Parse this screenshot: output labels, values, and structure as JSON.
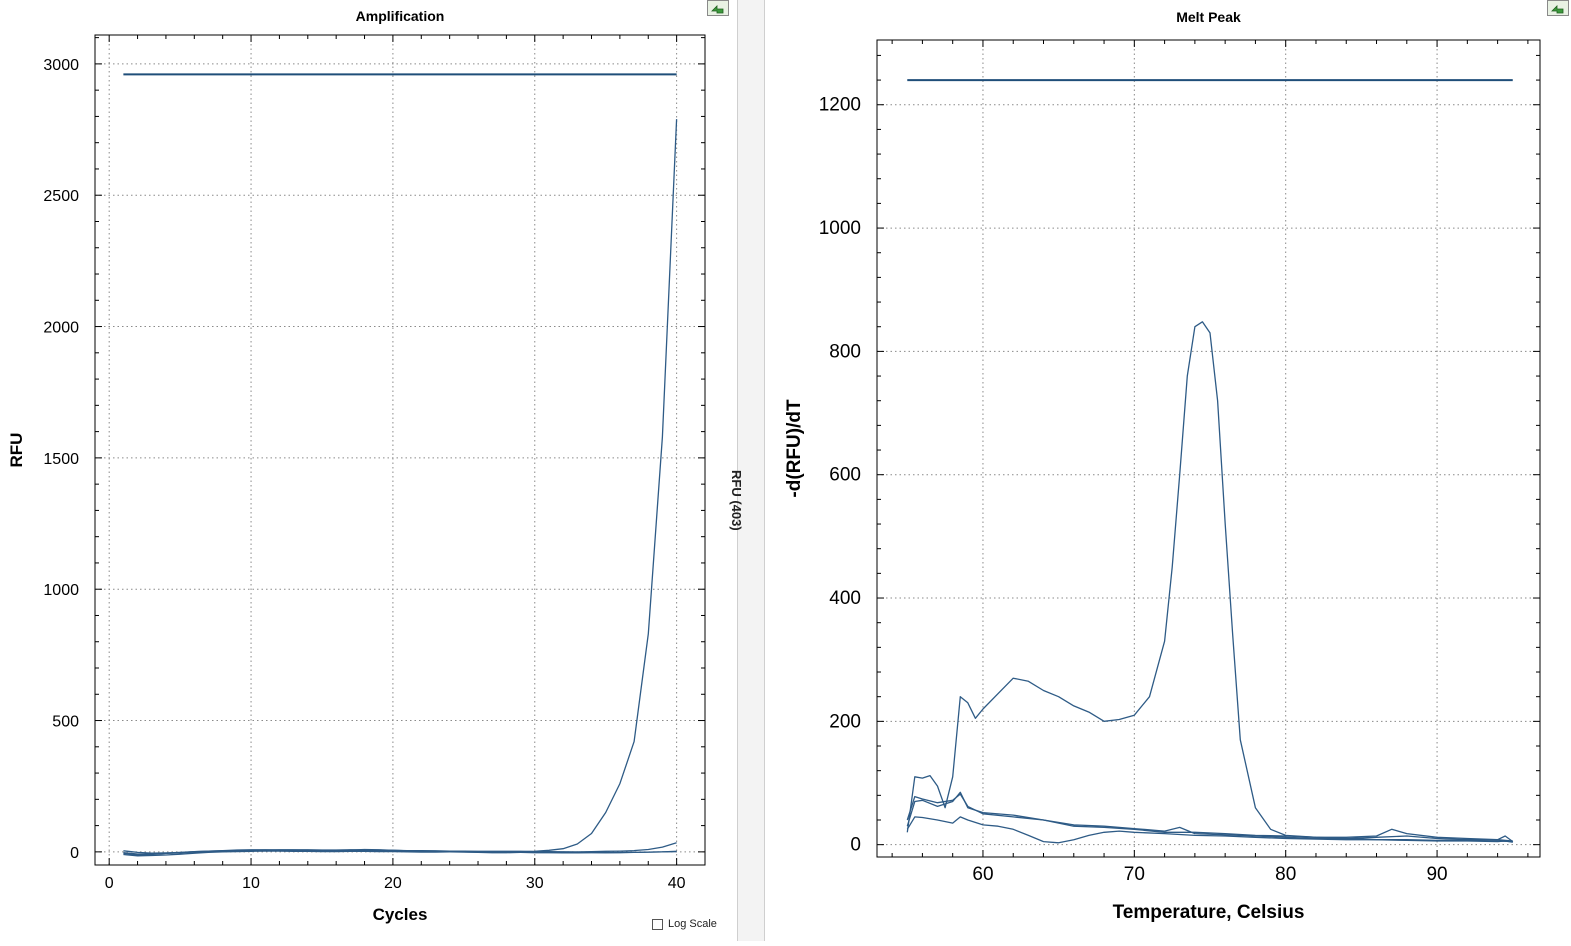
{
  "splitter_text": "RFU (403)",
  "log_scale_label": "Log Scale",
  "colors": {
    "curve": "#2e5b86",
    "threshold": "#1f4e79",
    "grid": "#8a8a8a",
    "axis": "#000000"
  },
  "icons": {
    "export": "export-arrow-icon"
  },
  "chart_data": [
    {
      "type": "line",
      "title": "Amplification",
      "xlabel": "Cycles",
      "ylabel": "RFU",
      "xlim": [
        -1,
        42
      ],
      "ylim": [
        -50,
        3110
      ],
      "xticks": [
        0,
        10,
        20,
        30,
        40
      ],
      "yticks": [
        0,
        500,
        1000,
        1500,
        2000,
        2500,
        3000
      ],
      "grid": true,
      "threshold": 2960,
      "threshold_x": [
        1,
        40
      ],
      "series": [
        {
          "x": [
            1,
            2,
            3,
            4,
            5,
            6,
            7,
            8,
            9,
            10,
            11,
            12,
            13,
            14,
            15,
            16,
            17,
            18,
            19,
            20,
            21,
            22,
            23,
            24,
            25,
            26,
            27,
            28,
            29,
            30,
            31,
            32,
            33,
            34,
            35,
            36,
            37,
            38,
            39,
            40
          ],
          "y": [
            -5,
            -12,
            -10,
            -6,
            -3,
            1,
            3,
            5,
            7,
            8,
            8,
            7,
            7,
            6,
            6,
            5,
            6,
            6,
            5,
            4,
            3,
            2,
            2,
            1,
            1,
            1,
            0,
            0,
            1,
            2,
            6,
            12,
            30,
            70,
            150,
            260,
            420,
            830,
            1580,
            2790
          ]
        },
        {
          "x": [
            1,
            2,
            3,
            4,
            5,
            6,
            7,
            8,
            9,
            10,
            11,
            12,
            13,
            14,
            15,
            16,
            17,
            18,
            19,
            20,
            21,
            22,
            23,
            24,
            25,
            26,
            27,
            28,
            29,
            30,
            31,
            32,
            33,
            34,
            35,
            36,
            37,
            38,
            39,
            40
          ],
          "y": [
            -3,
            -8,
            -8,
            -6,
            -4,
            -1,
            1,
            3,
            5,
            6,
            7,
            8,
            8,
            8,
            7,
            7,
            8,
            7,
            7,
            6,
            5,
            5,
            4,
            3,
            3,
            2,
            2,
            2,
            2,
            1,
            1,
            0,
            0,
            1,
            2,
            3,
            5,
            9,
            18,
            35
          ]
        },
        {
          "x": [
            1,
            2,
            3,
            4,
            5,
            6,
            7,
            8,
            9,
            10,
            11,
            12,
            13,
            14,
            15,
            16,
            17,
            18,
            19,
            20,
            21,
            22,
            23,
            24,
            25,
            26,
            27,
            28,
            29,
            30,
            31,
            32,
            33,
            34,
            35,
            36,
            37,
            38,
            39,
            40
          ],
          "y": [
            -10,
            -15,
            -14,
            -12,
            -9,
            -5,
            -2,
            0,
            1,
            2,
            3,
            3,
            2,
            2,
            1,
            1,
            2,
            2,
            1,
            1,
            0,
            -1,
            -1,
            0,
            0,
            -1,
            -1,
            -2,
            -2,
            -3,
            -3,
            -4,
            -4,
            -3,
            -3,
            -2,
            -2,
            -1,
            0,
            1
          ]
        },
        {
          "x": [
            1,
            2,
            3,
            4,
            5,
            6,
            7,
            8,
            9,
            10,
            11,
            12,
            13,
            14,
            15,
            16,
            17,
            18,
            19,
            20,
            21,
            22,
            23,
            24,
            25,
            26,
            27,
            28,
            29,
            30,
            31,
            32,
            33,
            34,
            35,
            36,
            37,
            38,
            39,
            40
          ],
          "y": [
            4,
            -2,
            -5,
            -4,
            -2,
            1,
            3,
            4,
            4,
            5,
            6,
            6,
            5,
            4,
            4,
            5,
            7,
            9,
            8,
            6,
            4,
            3,
            1,
            0,
            -1,
            -2,
            -3,
            -3,
            -2,
            -1,
            0,
            0,
            -1,
            -2,
            -3,
            -3,
            -2,
            -1,
            0,
            2
          ]
        }
      ]
    },
    {
      "type": "line",
      "title": "Melt Peak",
      "xlabel": "Temperature, Celsius",
      "ylabel": "-d(RFU)/dT",
      "xlim": [
        53,
        96.8
      ],
      "ylim": [
        -20,
        1305
      ],
      "xticks": [
        60,
        70,
        80,
        90
      ],
      "yticks": [
        0,
        200,
        400,
        600,
        800,
        1000,
        1200
      ],
      "grid": true,
      "threshold": 1240,
      "threshold_x": [
        55,
        95
      ],
      "series": [
        {
          "x": [
            55,
            55.5,
            56,
            56.5,
            57,
            57.5,
            58,
            58.5,
            59,
            59.5,
            60,
            61,
            62,
            63,
            64,
            65,
            66,
            67,
            68,
            69,
            70,
            71,
            72,
            72.5,
            73,
            73.5,
            74,
            74.5,
            75,
            75.5,
            76,
            76.5,
            77,
            78,
            79,
            80,
            82,
            84,
            86,
            88,
            90,
            92,
            94,
            95
          ],
          "y": [
            20,
            110,
            108,
            112,
            95,
            60,
            110,
            240,
            230,
            205,
            220,
            245,
            270,
            265,
            250,
            240,
            225,
            215,
            200,
            203,
            210,
            240,
            330,
            450,
            600,
            760,
            840,
            848,
            830,
            720,
            520,
            340,
            170,
            60,
            25,
            15,
            12,
            10,
            12,
            14,
            10,
            8,
            8,
            6
          ]
        },
        {
          "x": [
            55,
            55.5,
            56,
            57,
            58,
            58.5,
            59,
            60,
            62,
            64,
            66,
            68,
            70,
            72,
            74,
            76,
            78,
            80,
            82,
            84,
            86,
            87,
            88,
            90,
            92,
            94,
            94.5,
            95
          ],
          "y": [
            30,
            70,
            72,
            62,
            70,
            85,
            60,
            52,
            48,
            40,
            30,
            28,
            25,
            20,
            20,
            18,
            15,
            14,
            12,
            12,
            14,
            25,
            18,
            12,
            10,
            8,
            14,
            5
          ]
        },
        {
          "x": [
            55,
            55.5,
            56,
            57,
            58,
            58.5,
            59,
            60,
            62,
            64,
            66,
            68,
            70,
            72,
            73,
            74,
            76,
            78,
            80,
            82,
            84,
            86,
            88,
            90,
            92,
            94,
            95
          ],
          "y": [
            40,
            78,
            74,
            68,
            72,
            82,
            62,
            50,
            45,
            40,
            32,
            30,
            26,
            22,
            28,
            18,
            16,
            14,
            12,
            10,
            10,
            8,
            8,
            7,
            7,
            6,
            5
          ]
        },
        {
          "x": [
            55,
            55.5,
            56,
            57,
            58,
            58.5,
            59,
            60,
            61,
            62,
            63,
            64,
            65,
            66,
            67,
            68,
            69,
            70,
            72,
            74,
            76,
            78,
            80,
            82,
            84,
            86,
            88,
            90,
            92,
            94,
            94.5,
            95
          ],
          "y": [
            25,
            45,
            44,
            40,
            35,
            45,
            40,
            32,
            30,
            25,
            15,
            5,
            3,
            8,
            15,
            20,
            22,
            20,
            18,
            15,
            14,
            12,
            10,
            9,
            8,
            8,
            7,
            6,
            6,
            5,
            6,
            4
          ]
        }
      ]
    }
  ]
}
